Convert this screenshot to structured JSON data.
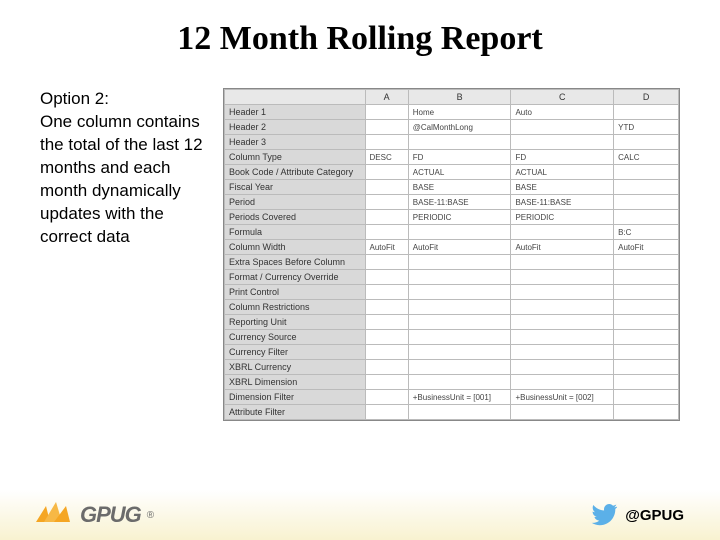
{
  "title": "12 Month Rolling Report",
  "option_label": "Option 2:",
  "description": "One column contains the total of the last 12 months and each month dynamically updates with the correct data",
  "sheet": {
    "col_headers": [
      "",
      "A",
      "B",
      "C",
      "D"
    ],
    "rows": [
      {
        "label": "Header 1",
        "A": "",
        "B": "Home",
        "C": "Auto",
        "D": ""
      },
      {
        "label": "Header 2",
        "A": "",
        "B": "@CalMonthLong",
        "C": "",
        "D": "YTD"
      },
      {
        "label": "Header 3",
        "A": "",
        "B": "",
        "C": "",
        "D": ""
      },
      {
        "label": "Column Type",
        "A": "DESC",
        "B": "FD",
        "C": "FD",
        "D": "CALC"
      },
      {
        "label": "Book Code / Attribute Category",
        "A": "",
        "B": "ACTUAL",
        "C": "ACTUAL",
        "D": ""
      },
      {
        "label": "Fiscal Year",
        "A": "",
        "B": "BASE",
        "C": "BASE",
        "D": ""
      },
      {
        "label": "Period",
        "A": "",
        "B": "BASE-11:BASE",
        "C": "BASE-11:BASE",
        "D": ""
      },
      {
        "label": "Periods Covered",
        "A": "",
        "B": "PERIODIC",
        "C": "PERIODIC",
        "D": ""
      },
      {
        "label": "Formula",
        "A": "",
        "B": "",
        "C": "",
        "D": "B:C"
      },
      {
        "label": "Column Width",
        "A": "AutoFit",
        "B": "AutoFit",
        "C": "AutoFit",
        "D": "AutoFit"
      },
      {
        "label": "Extra Spaces Before Column",
        "A": "",
        "B": "",
        "C": "",
        "D": ""
      },
      {
        "label": "Format / Currency Override",
        "A": "",
        "B": "",
        "C": "",
        "D": ""
      },
      {
        "label": "Print Control",
        "A": "",
        "B": "",
        "C": "",
        "D": ""
      },
      {
        "label": "Column Restrictions",
        "A": "",
        "B": "",
        "C": "",
        "D": ""
      },
      {
        "label": "Reporting Unit",
        "A": "",
        "B": "",
        "C": "",
        "D": ""
      },
      {
        "label": "Currency Source",
        "A": "",
        "B": "",
        "C": "",
        "D": ""
      },
      {
        "label": "Currency Filter",
        "A": "",
        "B": "",
        "C": "",
        "D": ""
      },
      {
        "label": "XBRL Currency",
        "A": "",
        "B": "",
        "C": "",
        "D": ""
      },
      {
        "label": "XBRL Dimension",
        "A": "",
        "B": "",
        "C": "",
        "D": ""
      },
      {
        "label": "Dimension Filter",
        "A": "",
        "B": "+BusinessUnit = [001]",
        "C": "+BusinessUnit = [002]",
        "D": ""
      },
      {
        "label": "Attribute Filter",
        "A": "",
        "B": "",
        "C": "",
        "D": ""
      }
    ],
    "header_bg": "#e8e8e8",
    "rowlabel_bg": "#d9d9d9",
    "grid_color": "#bbbbbb"
  },
  "footer": {
    "logo_text": "GPUG",
    "registered": "®",
    "handle": "@GPUG",
    "accent_color": "#f5a623",
    "logo_text_color": "#6b6b6b",
    "twitter_color": "#5bb0e8"
  }
}
